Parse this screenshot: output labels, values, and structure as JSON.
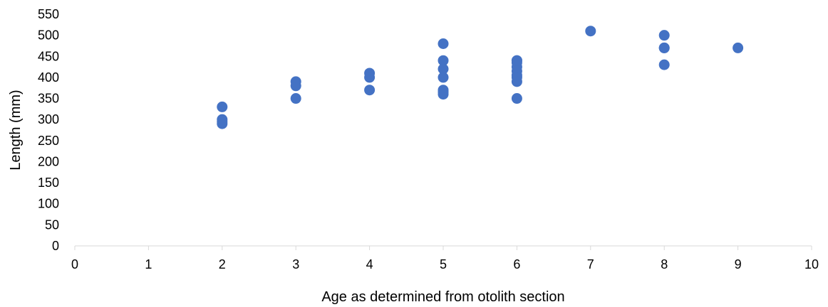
{
  "chart_data": {
    "type": "scatter",
    "title": "",
    "xlabel": "Age as determined from otolith section",
    "ylabel": "Length (mm)",
    "xlim": [
      0,
      10
    ],
    "ylim": [
      0,
      550
    ],
    "xticks": [
      0,
      1,
      2,
      3,
      4,
      5,
      6,
      7,
      8,
      9,
      10
    ],
    "yticks": [
      0,
      50,
      100,
      150,
      200,
      250,
      300,
      350,
      400,
      450,
      500,
      550
    ],
    "grid": false,
    "legend": "none",
    "marker_color": "#4472C4",
    "series": [
      {
        "x": [
          2,
          2,
          2,
          2,
          3,
          3,
          3,
          4,
          4,
          4,
          5,
          5,
          5,
          5,
          5,
          5,
          5,
          6,
          6,
          6,
          6,
          6,
          6,
          6,
          6,
          6,
          7,
          8,
          8,
          8,
          8,
          9
        ],
        "y": [
          330,
          300,
          295,
          290,
          390,
          380,
          350,
          410,
          400,
          370,
          480,
          440,
          420,
          400,
          370,
          365,
          360,
          440,
          435,
          425,
          415,
          405,
          400,
          390,
          350,
          440,
          510,
          500,
          470,
          430,
          470,
          470
        ]
      }
    ]
  }
}
